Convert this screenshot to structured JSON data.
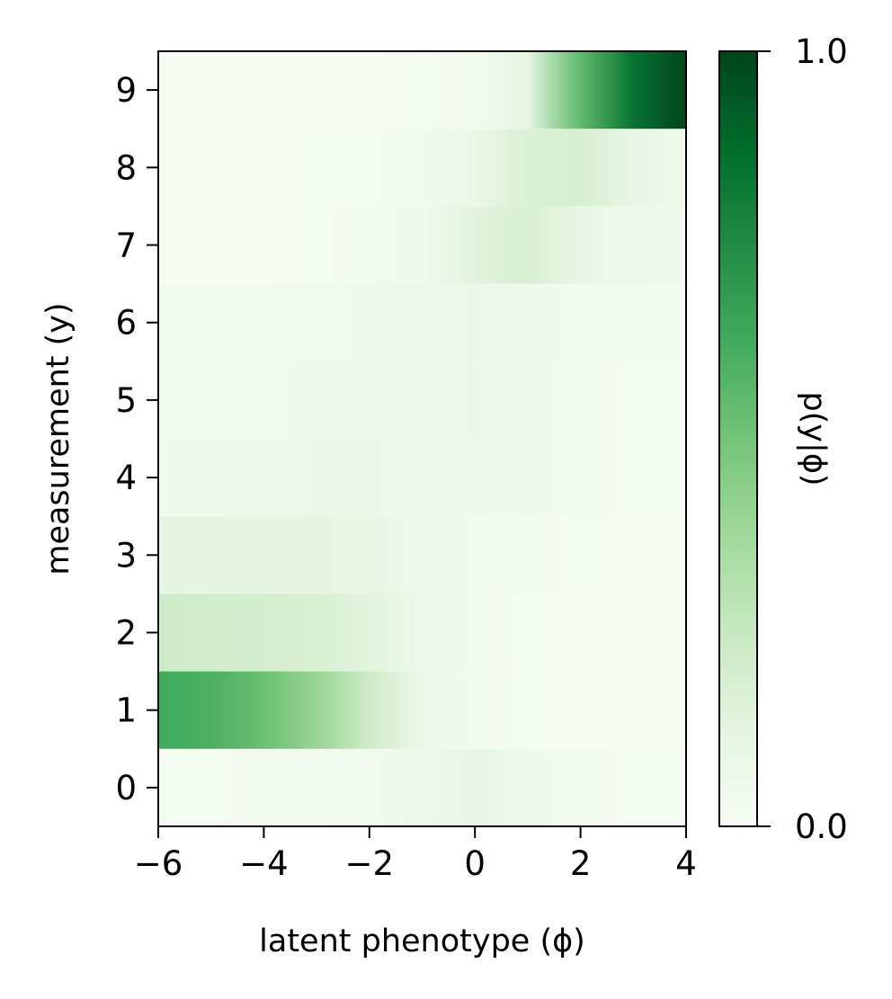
{
  "chart_data": {
    "type": "heatmap",
    "xlabel": "latent phenotype (ϕ)",
    "ylabel": "measurement (y)",
    "colorbar_label": "p(y|ϕ)",
    "xlim": [
      -6,
      4
    ],
    "ylim": [
      -0.5,
      9.5
    ],
    "x_ticks": [
      -6,
      -4,
      -2,
      0,
      2,
      4
    ],
    "x_tick_labels": [
      "−6",
      "−4",
      "−2",
      "0",
      "2",
      "4"
    ],
    "y_ticks": [
      0,
      1,
      2,
      3,
      4,
      5,
      6,
      7,
      8,
      9
    ],
    "y_tick_labels": [
      "0",
      "1",
      "2",
      "3",
      "4",
      "5",
      "6",
      "7",
      "8",
      "9"
    ],
    "colorbar_range": [
      0.0,
      1.0
    ],
    "colorbar_tick_labels": [
      "0.0",
      "1.0"
    ],
    "colormap": "Greens",
    "colormap_stops": [
      "#f7fcf5",
      "#e5f5e0",
      "#c7e9c0",
      "#a1d99b",
      "#74c476",
      "#41ab5d",
      "#238b45",
      "#006d2c",
      "#00441b"
    ],
    "x": [
      -6,
      -5,
      -4,
      -3,
      -2,
      -1,
      0,
      1,
      2,
      3,
      4
    ],
    "rows": [
      {
        "y": 0,
        "values": [
          0.02,
          0.02,
          0.03,
          0.03,
          0.04,
          0.07,
          0.1,
          0.06,
          0.03,
          0.02,
          0.02
        ]
      },
      {
        "y": 1,
        "values": [
          0.63,
          0.6,
          0.52,
          0.4,
          0.22,
          0.08,
          0.03,
          0.02,
          0.01,
          0.01,
          0.01
        ]
      },
      {
        "y": 2,
        "values": [
          0.22,
          0.21,
          0.2,
          0.18,
          0.14,
          0.07,
          0.03,
          0.02,
          0.01,
          0.01,
          0.01
        ]
      },
      {
        "y": 3,
        "values": [
          0.12,
          0.12,
          0.12,
          0.12,
          0.1,
          0.07,
          0.04,
          0.03,
          0.02,
          0.01,
          0.01
        ]
      },
      {
        "y": 4,
        "values": [
          0.05,
          0.06,
          0.07,
          0.08,
          0.08,
          0.07,
          0.06,
          0.05,
          0.03,
          0.02,
          0.02
        ]
      },
      {
        "y": 5,
        "values": [
          0.03,
          0.03,
          0.04,
          0.05,
          0.06,
          0.07,
          0.08,
          0.05,
          0.03,
          0.02,
          0.02
        ]
      },
      {
        "y": 6,
        "values": [
          0.03,
          0.03,
          0.03,
          0.04,
          0.05,
          0.07,
          0.08,
          0.06,
          0.04,
          0.03,
          0.03
        ]
      },
      {
        "y": 7,
        "values": [
          0.01,
          0.01,
          0.01,
          0.02,
          0.03,
          0.05,
          0.14,
          0.18,
          0.1,
          0.06,
          0.05
        ]
      },
      {
        "y": 8,
        "values": [
          0.01,
          0.01,
          0.01,
          0.02,
          0.02,
          0.04,
          0.09,
          0.17,
          0.19,
          0.1,
          0.06
        ]
      },
      {
        "y": 9,
        "values": [
          0.01,
          0.01,
          0.01,
          0.01,
          0.01,
          0.02,
          0.03,
          0.12,
          0.55,
          0.85,
          1.0
        ]
      }
    ]
  }
}
